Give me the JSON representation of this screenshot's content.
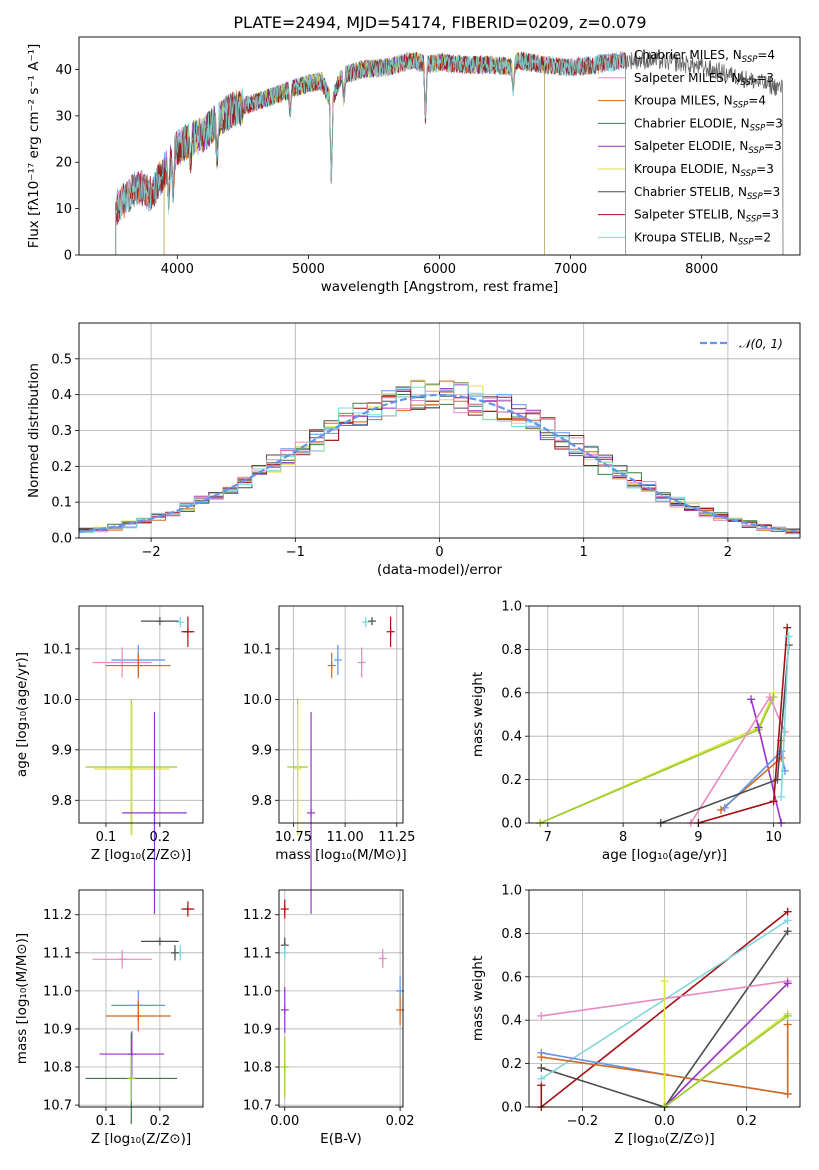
{
  "colors": {
    "blue": "#6495ED",
    "orange": "#D2691E",
    "green": "#3A7D44",
    "purple": "#9932CC",
    "yellow": "#DFE24A",
    "darkgray": "#4D4D4D",
    "red": "#A50F15",
    "pink": "#E78AC3",
    "cyan": "#7FD8DC",
    "lime": "#9ACD32"
  },
  "chart_data": [
    {
      "type": "line",
      "title": "PLATE=2494, MJD=54174, FIBERID=0209, z=0.079",
      "xlabel": "wavelength [Angstrom, rest frame]",
      "ylabel": "Flux [fλ10⁻¹⁷ erg cm⁻² s⁻¹ A⁻¹]",
      "xlim": [
        3250,
        8750
      ],
      "ylim": [
        0,
        47
      ],
      "xticks": [
        "4000",
        "5000",
        "6000",
        "7000",
        "8000"
      ],
      "yticks": [
        "0",
        "10",
        "20",
        "30",
        "40"
      ],
      "grid": false,
      "legend_position": "top-right",
      "legend": [
        {
          "label": "Chabrier MILES, N",
          "sub": "SSP",
          "tail": "=4",
          "color": "blue"
        },
        {
          "label": "Salpeter MILES, N",
          "sub": "SSP",
          "tail": "=3",
          "color": "pink"
        },
        {
          "label": "Kroupa MILES, N",
          "sub": "SSP",
          "tail": "=4",
          "color": "orange"
        },
        {
          "label": "Chabrier ELODIE, N",
          "sub": "SSP",
          "tail": "=3",
          "color": "green"
        },
        {
          "label": "Salpeter ELODIE, N",
          "sub": "SSP",
          "tail": "=3",
          "color": "purple"
        },
        {
          "label": "Kroupa ELODIE, N",
          "sub": "SSP",
          "tail": "=3",
          "color": "yellow"
        },
        {
          "label": "Chabrier STELIB, N",
          "sub": "SSP",
          "tail": "=3",
          "color": "darkgray"
        },
        {
          "label": "Salpeter STELIB, N",
          "sub": "SSP",
          "tail": "=3",
          "color": "red"
        },
        {
          "label": "Kroupa STELIB, N",
          "sub": "SSP",
          "tail": "=2",
          "color": "cyan"
        }
      ],
      "series_ranges": [
        {
          "name": "Chabrier MILES",
          "color": "blue",
          "x_range": [
            3530,
            7420
          ]
        },
        {
          "name": "Salpeter MILES",
          "color": "pink",
          "x_range": [
            3530,
            7420
          ]
        },
        {
          "name": "Kroupa MILES",
          "color": "orange",
          "x_range": [
            3530,
            7420
          ]
        },
        {
          "name": "Chabrier ELODIE",
          "color": "green",
          "x_range": [
            3900,
            6800
          ]
        },
        {
          "name": "Salpeter ELODIE",
          "color": "purple",
          "x_range": [
            3900,
            6800
          ]
        },
        {
          "name": "Kroupa ELODIE",
          "color": "yellow",
          "x_range": [
            3900,
            6800
          ]
        },
        {
          "name": "Chabrier STELIB",
          "color": "darkgray",
          "x_range": [
            3530,
            8620
          ]
        },
        {
          "name": "Salpeter STELIB",
          "color": "red",
          "x_range": [
            3530,
            7420
          ]
        },
        {
          "name": "Kroupa STELIB",
          "color": "cyan",
          "x_range": [
            3530,
            7420
          ]
        }
      ],
      "envelope": {
        "x": [
          3530,
          3600,
          3700,
          3800,
          3900,
          3950,
          4000,
          4100,
          4200,
          4300,
          4400,
          4600,
          4800,
          5000,
          5100,
          5175,
          5250,
          5400,
          5600,
          5800,
          5900,
          6000,
          6200,
          6400,
          6563,
          6600,
          6800,
          7000,
          7200,
          7400,
          7600,
          7800,
          8000,
          8200,
          8400,
          8600
        ],
        "y": [
          10,
          12,
          15,
          13,
          18,
          20,
          23,
          25,
          26,
          29,
          31,
          33,
          35,
          37,
          37.5,
          33,
          38.5,
          40,
          40.5,
          42,
          41,
          41.5,
          41,
          41,
          40.5,
          42,
          41,
          40.5,
          41,
          42,
          42,
          41.5,
          40.5,
          39,
          37.5,
          36
        ]
      }
    },
    {
      "type": "step",
      "xlabel": "(data-model)/error",
      "ylabel": "Normed distribution",
      "xlim": [
        -2.5,
        2.5
      ],
      "ylim": [
        0,
        0.6
      ],
      "xticks": [
        "−2",
        "−1",
        "0",
        "1",
        "2"
      ],
      "yticks": [
        "0.0",
        "0.1",
        "0.2",
        "0.3",
        "0.4",
        "0.5"
      ],
      "grid": true,
      "legend_position": "top-right",
      "legend": [
        {
          "label": "𝒩(0, 1)",
          "color": "blue",
          "style": "dashed"
        }
      ],
      "bin_width": 0.1,
      "bin_start": -2.5,
      "series_colors": [
        "blue",
        "orange",
        "green",
        "purple",
        "yellow",
        "darkgray",
        "red",
        "pink",
        "cyan"
      ]
    },
    {
      "type": "errorbar",
      "xlabel": "Z [log₁₀(Z/Z⊙)]",
      "ylabel": "age  [log₁₀(age/yr)]",
      "xlim": [
        0.05,
        0.28
      ],
      "ylim": [
        9.755,
        10.185
      ],
      "xticks": [
        "0.1",
        "0.2"
      ],
      "yticks": [
        "9.8",
        "9.9",
        "10.0",
        "10.1"
      ],
      "grid": true,
      "points": [
        {
          "color": "darkgray",
          "x": 0.2,
          "xerr": 0.035,
          "y": 10.155,
          "yerr": 0.0
        },
        {
          "color": "cyan",
          "x": 0.238,
          "xerr": 0.0,
          "y": 10.153,
          "yerr": 0.01
        },
        {
          "color": "red",
          "x": 0.252,
          "xerr": 0.012,
          "y": 10.134,
          "yerr": 0.03
        },
        {
          "color": "blue",
          "x": 0.16,
          "xerr": 0.05,
          "y": 10.078,
          "yerr": 0.03
        },
        {
          "color": "pink",
          "x": 0.13,
          "xerr": 0.055,
          "y": 10.073,
          "yerr": 0.03
        },
        {
          "color": "orange",
          "x": 0.16,
          "xerr": 0.06,
          "y": 10.067,
          "yerr": 0.025
        },
        {
          "color": "lime",
          "x": 0.147,
          "xerr": 0.085,
          "y": 9.866,
          "yerr": 0.135
        },
        {
          "color": "yellow",
          "x": 0.148,
          "xerr": 0.07,
          "y": 9.862,
          "yerr": 0.13
        },
        {
          "color": "purple",
          "x": 0.19,
          "xerr": 0.06,
          "y": 9.775,
          "yerr": 0.2
        }
      ]
    },
    {
      "type": "errorbar",
      "xlabel": "mass [log₁₀(M/M⊙)]",
      "ylabel": "",
      "xlim": [
        10.68,
        11.28
      ],
      "ylim": [
        9.755,
        10.185
      ],
      "xticks": [
        "10.75",
        "11.00",
        "11.25"
      ],
      "yticks": [
        "9.8",
        "9.9",
        "10.0",
        "10.1"
      ],
      "grid": true,
      "points": [
        {
          "color": "darkgray",
          "x": 11.13,
          "xerr": 0.0,
          "y": 10.155,
          "yerr": 0.0
        },
        {
          "color": "cyan",
          "x": 11.1,
          "xerr": 0.0,
          "y": 10.153,
          "yerr": 0.01
        },
        {
          "color": "red",
          "x": 11.22,
          "xerr": 0.0,
          "y": 10.134,
          "yerr": 0.03
        },
        {
          "color": "blue",
          "x": 10.965,
          "xerr": 0.0,
          "y": 10.078,
          "yerr": 0.03
        },
        {
          "color": "pink",
          "x": 11.08,
          "xerr": 0.0,
          "y": 10.073,
          "yerr": 0.03
        },
        {
          "color": "orange",
          "x": 10.935,
          "xerr": 0.0,
          "y": 10.067,
          "yerr": 0.025
        },
        {
          "color": "lime",
          "x": 10.77,
          "xerr": 0.05,
          "y": 9.866,
          "yerr": 0.135
        },
        {
          "color": "yellow",
          "x": 10.77,
          "xerr": 0.0,
          "y": 9.862,
          "yerr": 0.13
        },
        {
          "color": "purple",
          "x": 10.835,
          "xerr": 0.0,
          "y": 9.775,
          "yerr": 0.2
        }
      ]
    },
    {
      "type": "line",
      "xlabel": "age  [log₁₀(age/yr)]",
      "ylabel": "mass weight",
      "xlim": [
        6.75,
        10.35
      ],
      "ylim": [
        0,
        1.0
      ],
      "xticks": [
        "7",
        "8",
        "9",
        "10"
      ],
      "yticks": [
        "0.0",
        "0.2",
        "0.4",
        "0.6",
        "0.8",
        "1.0"
      ],
      "grid": true,
      "series": [
        {
          "color": "yellow",
          "x": [
            6.9,
            9.8,
            10.0
          ],
          "y": [
            0.0,
            0.44,
            0.6
          ]
        },
        {
          "color": "lime",
          "x": [
            6.9,
            9.8,
            10.0
          ],
          "y": [
            0.0,
            0.43,
            0.58
          ]
        },
        {
          "color": "purple",
          "x": [
            9.7,
            9.8,
            10.1
          ],
          "y": [
            0.57,
            0.44,
            0.0
          ]
        },
        {
          "color": "pink",
          "x": [
            8.9,
            9.95,
            10.15
          ],
          "y": [
            0.0,
            0.58,
            0.42
          ]
        },
        {
          "color": "orange",
          "x": [
            9.3,
            10.1,
            10.1
          ],
          "y": [
            0.06,
            0.3,
            0.38
          ]
        },
        {
          "color": "blue",
          "x": [
            9.35,
            10.1,
            10.15
          ],
          "y": [
            0.07,
            0.33,
            0.24
          ]
        },
        {
          "color": "darkgray",
          "x": [
            8.5,
            10.05,
            10.2
          ],
          "y": [
            0.0,
            0.2,
            0.82
          ]
        },
        {
          "color": "red",
          "x": [
            9.0,
            10.0,
            10.18
          ],
          "y": [
            0.0,
            0.1,
            0.9
          ]
        },
        {
          "color": "cyan",
          "x": [
            10.1,
            10.2
          ],
          "y": [
            0.12,
            0.86
          ]
        }
      ]
    },
    {
      "type": "errorbar",
      "xlabel": "Z [log₁₀(Z/Z⊙)]",
      "ylabel": "mass [log₁₀(M/M⊙)]",
      "xlim": [
        0.05,
        0.28
      ],
      "ylim": [
        10.695,
        11.265
      ],
      "xticks": [
        "0.1",
        "0.2"
      ],
      "yticks": [
        "10.7",
        "10.8",
        "10.9",
        "11.0",
        "11.1",
        "11.2"
      ],
      "grid": true,
      "points": [
        {
          "color": "red",
          "x": 0.252,
          "xerr": 0.012,
          "y": 11.215,
          "yerr": 0.02
        },
        {
          "color": "darkgray",
          "x": 0.2,
          "xerr": 0.035,
          "y": 11.13,
          "yerr": 0.0
        },
        {
          "color": "cyan",
          "x": 0.238,
          "xerr": 0.0,
          "y": 11.1,
          "yerr": 0.02
        },
        {
          "color": "darkgray",
          "x": 0.228,
          "xerr": 0.0,
          "y": 11.1,
          "yerr": 0.02
        },
        {
          "color": "pink",
          "x": 0.13,
          "xerr": 0.055,
          "y": 11.083,
          "yerr": 0.025
        },
        {
          "color": "blue",
          "x": 0.16,
          "xerr": 0.05,
          "y": 10.962,
          "yerr": 0.04
        },
        {
          "color": "orange",
          "x": 0.16,
          "xerr": 0.06,
          "y": 10.934,
          "yerr": 0.04
        },
        {
          "color": "purple",
          "x": 0.148,
          "xerr": 0.06,
          "y": 10.834,
          "yerr": 0.06
        },
        {
          "color": "green",
          "x": 0.147,
          "xerr": 0.085,
          "y": 10.77,
          "yerr": 0.12
        },
        {
          "color": "lime",
          "x": 0.147,
          "xerr": 0.0,
          "y": 10.77,
          "yerr": 0.06
        }
      ]
    },
    {
      "type": "errorbar",
      "xlabel": "E(B-V)",
      "ylabel": "",
      "xlim": [
        -0.001,
        0.0205
      ],
      "ylim": [
        10.695,
        11.265
      ],
      "xticks": [
        "0.00",
        "0.02"
      ],
      "yticks": [
        "10.7",
        "10.8",
        "10.9",
        "11.0",
        "11.1",
        "11.2"
      ],
      "grid": true,
      "points": [
        {
          "color": "red",
          "x": 0.0,
          "xerr": 0.0,
          "y": 11.215,
          "yerr": 0.025
        },
        {
          "color": "darkgray",
          "x": 0.0,
          "xerr": 0.0,
          "y": 11.12,
          "yerr": 0.02
        },
        {
          "color": "cyan",
          "x": 0.0,
          "xerr": 0.0,
          "y": 11.1,
          "yerr": 0.02
        },
        {
          "color": "pink",
          "x": 0.017,
          "xerr": 0.0,
          "y": 11.085,
          "yerr": 0.025
        },
        {
          "color": "blue",
          "x": 0.02,
          "xerr": 0.0,
          "y": 11.0,
          "yerr": 0.04
        },
        {
          "color": "orange",
          "x": 0.02,
          "xerr": 0.0,
          "y": 10.95,
          "yerr": 0.04
        },
        {
          "color": "purple",
          "x": 0.0,
          "xerr": 0.0,
          "y": 10.95,
          "yerr": 0.06
        },
        {
          "color": "lime",
          "x": 0.0,
          "xerr": 0.0,
          "y": 10.8,
          "yerr": 0.08
        }
      ]
    },
    {
      "type": "line",
      "xlabel": "Z [log₁₀(Z/Z⊙)]",
      "ylabel": "mass weight",
      "xlim": [
        -0.33,
        0.33
      ],
      "ylim": [
        0,
        1.0
      ],
      "xticks": [
        "−0.2",
        "0.0",
        "0.2"
      ],
      "yticks": [
        "0.0",
        "0.2",
        "0.4",
        "0.6",
        "0.8",
        "1.0"
      ],
      "grid": true,
      "series": [
        {
          "color": "red",
          "x": [
            -0.3,
            -0.3,
            0.3
          ],
          "y": [
            0.1,
            0.0,
            0.9
          ]
        },
        {
          "color": "darkgray",
          "x": [
            -0.3,
            0.0,
            0.3
          ],
          "y": [
            0.18,
            0.0,
            0.81
          ]
        },
        {
          "color": "cyan",
          "x": [
            -0.3,
            0.3
          ],
          "y": [
            0.13,
            0.86
          ]
        },
        {
          "color": "pink",
          "x": [
            -0.3,
            0.3
          ],
          "y": [
            0.42,
            0.58
          ]
        },
        {
          "color": "blue",
          "x": [
            -0.3,
            0.0,
            0.3
          ],
          "y": [
            0.25,
            0.15,
            0.06
          ]
        },
        {
          "color": "orange",
          "x": [
            -0.3,
            0.0,
            0.3,
            0.3
          ],
          "y": [
            0.23,
            0.15,
            0.06,
            0.38
          ]
        },
        {
          "color": "purple",
          "x": [
            0.0,
            0.3
          ],
          "y": [
            0.0,
            0.57
          ]
        },
        {
          "color": "yellow",
          "x": [
            0.0,
            0.0,
            0.3
          ],
          "y": [
            0.58,
            0.0,
            0.43
          ]
        },
        {
          "color": "lime",
          "x": [
            0.0,
            0.3
          ],
          "y": [
            0.0,
            0.42
          ]
        }
      ]
    }
  ]
}
